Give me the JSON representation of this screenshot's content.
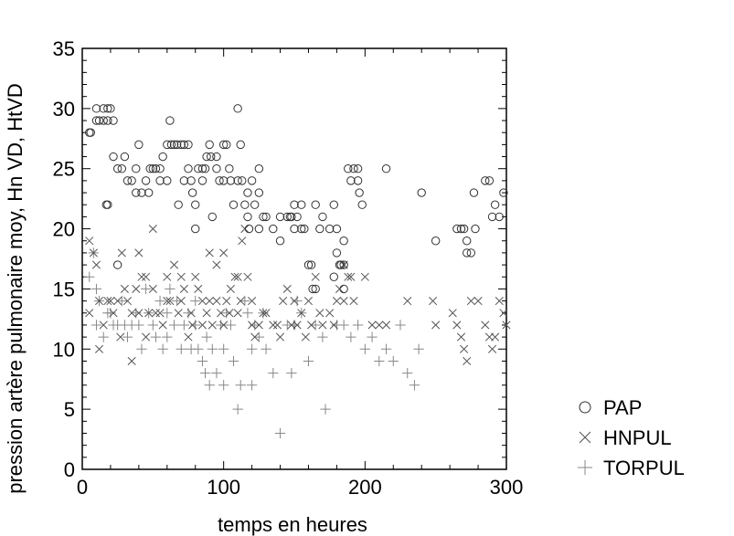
{
  "chart_data": {
    "type": "scatter",
    "title": "",
    "xlabel": "temps en heures",
    "ylabel": "pression artère pulmonaire moy, Hn VD, HtVD",
    "xlim": [
      0,
      300
    ],
    "ylim": [
      0,
      35
    ],
    "x_ticks": [
      0,
      100,
      200,
      300
    ],
    "y_ticks": [
      0,
      5,
      10,
      15,
      20,
      25,
      30,
      35
    ],
    "grid": false,
    "legend_position": "right",
    "series": [
      {
        "name": "PAP",
        "marker": "circle",
        "color": "#333333",
        "points": [
          [
            5,
            28
          ],
          [
            6,
            28
          ],
          [
            10,
            29
          ],
          [
            10,
            30
          ],
          [
            12,
            29
          ],
          [
            15,
            29
          ],
          [
            15,
            30
          ],
          [
            18,
            29
          ],
          [
            18,
            30
          ],
          [
            20,
            30
          ],
          [
            22,
            29
          ],
          [
            17,
            22
          ],
          [
            18,
            22
          ],
          [
            25,
            17
          ],
          [
            22,
            26
          ],
          [
            25,
            25
          ],
          [
            28,
            25
          ],
          [
            30,
            26
          ],
          [
            32,
            24
          ],
          [
            35,
            24
          ],
          [
            38,
            23
          ],
          [
            38,
            25
          ],
          [
            40,
            27
          ],
          [
            42,
            23
          ],
          [
            45,
            24
          ],
          [
            47,
            23
          ],
          [
            48,
            25
          ],
          [
            50,
            25
          ],
          [
            52,
            25
          ],
          [
            55,
            25
          ],
          [
            55,
            24
          ],
          [
            57,
            26
          ],
          [
            60,
            27
          ],
          [
            60,
            24
          ],
          [
            62,
            29
          ],
          [
            63,
            27
          ],
          [
            65,
            27
          ],
          [
            67,
            27
          ],
          [
            68,
            22
          ],
          [
            70,
            27
          ],
          [
            72,
            27
          ],
          [
            72,
            24
          ],
          [
            75,
            27
          ],
          [
            75,
            25
          ],
          [
            77,
            24
          ],
          [
            78,
            23
          ],
          [
            80,
            22
          ],
          [
            80,
            20
          ],
          [
            82,
            25
          ],
          [
            85,
            25
          ],
          [
            85,
            24
          ],
          [
            87,
            25
          ],
          [
            88,
            26
          ],
          [
            90,
            27
          ],
          [
            91,
            26
          ],
          [
            92,
            21
          ],
          [
            95,
            26
          ],
          [
            95,
            25
          ],
          [
            97,
            24
          ],
          [
            100,
            27
          ],
          [
            100,
            24
          ],
          [
            102,
            27
          ],
          [
            104,
            25
          ],
          [
            105,
            24
          ],
          [
            107,
            22
          ],
          [
            110,
            30
          ],
          [
            110,
            24
          ],
          [
            112,
            27
          ],
          [
            113,
            24
          ],
          [
            115,
            22
          ],
          [
            117,
            23
          ],
          [
            117,
            21
          ],
          [
            118,
            20
          ],
          [
            120,
            24
          ],
          [
            122,
            22
          ],
          [
            125,
            25
          ],
          [
            125,
            23
          ],
          [
            125,
            20
          ],
          [
            128,
            21
          ],
          [
            130,
            21
          ],
          [
            135,
            20
          ],
          [
            140,
            19
          ],
          [
            140,
            21
          ],
          [
            145,
            21
          ],
          [
            147,
            21
          ],
          [
            148,
            21
          ],
          [
            150,
            22
          ],
          [
            150,
            20
          ],
          [
            152,
            21
          ],
          [
            155,
            22
          ],
          [
            155,
            20
          ],
          [
            157,
            20
          ],
          [
            160,
            17
          ],
          [
            162,
            17
          ],
          [
            163,
            15
          ],
          [
            165,
            15
          ],
          [
            165,
            22
          ],
          [
            168,
            20
          ],
          [
            170,
            21
          ],
          [
            175,
            20
          ],
          [
            178,
            22
          ],
          [
            178,
            16
          ],
          [
            180,
            20
          ],
          [
            180,
            18
          ],
          [
            182,
            17
          ],
          [
            183,
            17
          ],
          [
            185,
            17
          ],
          [
            185,
            15
          ],
          [
            185,
            19
          ],
          [
            188,
            25
          ],
          [
            190,
            24
          ],
          [
            192,
            25
          ],
          [
            195,
            25
          ],
          [
            195,
            24
          ],
          [
            196,
            23
          ],
          [
            198,
            22
          ],
          [
            215,
            25
          ],
          [
            240,
            23
          ],
          [
            250,
            19
          ],
          [
            265,
            20
          ],
          [
            268,
            20
          ],
          [
            270,
            20
          ],
          [
            272,
            19
          ],
          [
            272,
            18
          ],
          [
            275,
            18
          ],
          [
            277,
            23
          ],
          [
            278,
            20
          ],
          [
            285,
            24
          ],
          [
            288,
            24
          ],
          [
            290,
            21
          ],
          [
            292,
            22
          ],
          [
            295,
            21
          ],
          [
            298,
            23
          ]
        ]
      },
      {
        "name": "HNPUL",
        "marker": "cross",
        "color": "#555555",
        "points": [
          [
            5,
            19
          ],
          [
            8,
            18
          ],
          [
            5,
            13
          ],
          [
            10,
            17
          ],
          [
            12,
            14
          ],
          [
            12,
            10
          ],
          [
            15,
            12
          ],
          [
            18,
            14
          ],
          [
            20,
            14
          ],
          [
            22,
            13
          ],
          [
            25,
            14
          ],
          [
            27,
            11
          ],
          [
            28,
            18
          ],
          [
            30,
            15
          ],
          [
            32,
            14
          ],
          [
            35,
            13
          ],
          [
            35,
            9
          ],
          [
            38,
            15
          ],
          [
            40,
            13
          ],
          [
            40,
            18
          ],
          [
            42,
            16
          ],
          [
            45,
            16
          ],
          [
            45,
            11
          ],
          [
            47,
            13
          ],
          [
            50,
            20
          ],
          [
            50,
            15
          ],
          [
            52,
            13
          ],
          [
            55,
            13
          ],
          [
            57,
            12
          ],
          [
            60,
            14
          ],
          [
            60,
            16
          ],
          [
            62,
            14
          ],
          [
            65,
            17
          ],
          [
            68,
            13
          ],
          [
            70,
            16
          ],
          [
            70,
            14
          ],
          [
            72,
            15
          ],
          [
            75,
            11
          ],
          [
            77,
            13
          ],
          [
            78,
            12
          ],
          [
            80,
            16
          ],
          [
            82,
            15
          ],
          [
            85,
            14
          ],
          [
            85,
            12
          ],
          [
            88,
            13
          ],
          [
            90,
            18
          ],
          [
            90,
            14
          ],
          [
            92,
            12
          ],
          [
            95,
            17
          ],
          [
            95,
            14
          ],
          [
            98,
            13
          ],
          [
            100,
            12
          ],
          [
            100,
            18
          ],
          [
            102,
            14
          ],
          [
            104,
            13
          ],
          [
            105,
            15
          ],
          [
            108,
            16
          ],
          [
            110,
            16
          ],
          [
            110,
            13
          ],
          [
            112,
            14
          ],
          [
            113,
            19
          ],
          [
            115,
            20
          ],
          [
            117,
            16
          ],
          [
            120,
            14
          ],
          [
            120,
            12
          ],
          [
            122,
            11
          ],
          [
            125,
            12
          ],
          [
            128,
            13
          ],
          [
            130,
            13
          ],
          [
            135,
            12
          ],
          [
            138,
            12
          ],
          [
            140,
            11
          ],
          [
            142,
            14
          ],
          [
            145,
            15
          ],
          [
            148,
            12
          ],
          [
            150,
            14
          ],
          [
            152,
            12
          ],
          [
            155,
            13
          ],
          [
            158,
            11
          ],
          [
            160,
            14
          ],
          [
            162,
            12
          ],
          [
            165,
            16
          ],
          [
            168,
            13
          ],
          [
            170,
            12
          ],
          [
            175,
            13
          ],
          [
            178,
            12
          ],
          [
            180,
            14
          ],
          [
            182,
            15
          ],
          [
            185,
            17
          ],
          [
            185,
            14
          ],
          [
            188,
            16
          ],
          [
            190,
            16
          ],
          [
            192,
            14
          ],
          [
            200,
            16
          ],
          [
            205,
            12
          ],
          [
            210,
            12
          ],
          [
            215,
            12
          ],
          [
            230,
            14
          ],
          [
            248,
            14
          ],
          [
            250,
            12
          ],
          [
            262,
            13
          ],
          [
            265,
            12
          ],
          [
            268,
            11
          ],
          [
            270,
            10
          ],
          [
            272,
            9
          ],
          [
            275,
            14
          ],
          [
            280,
            14
          ],
          [
            285,
            12
          ],
          [
            288,
            11
          ],
          [
            290,
            10
          ],
          [
            292,
            11
          ],
          [
            295,
            14
          ],
          [
            298,
            13
          ],
          [
            300,
            12
          ],
          [
            302,
            11
          ],
          [
            305,
            10
          ],
          [
            308,
            12
          ]
        ]
      },
      {
        "name": "TORPUL",
        "marker": "plus",
        "color": "#888888",
        "points": [
          [
            5,
            16
          ],
          [
            8,
            18
          ],
          [
            10,
            15
          ],
          [
            10,
            12
          ],
          [
            12,
            14
          ],
          [
            15,
            11
          ],
          [
            18,
            13
          ],
          [
            20,
            13
          ],
          [
            22,
            12
          ],
          [
            25,
            12
          ],
          [
            28,
            14
          ],
          [
            30,
            12
          ],
          [
            32,
            11
          ],
          [
            35,
            12
          ],
          [
            38,
            13
          ],
          [
            40,
            12
          ],
          [
            42,
            10
          ],
          [
            45,
            15
          ],
          [
            47,
            13
          ],
          [
            50,
            12
          ],
          [
            52,
            11
          ],
          [
            55,
            14
          ],
          [
            57,
            10
          ],
          [
            60,
            13
          ],
          [
            60,
            11
          ],
          [
            62,
            15
          ],
          [
            65,
            12
          ],
          [
            67,
            14
          ],
          [
            70,
            10
          ],
          [
            72,
            12
          ],
          [
            75,
            13
          ],
          [
            77,
            10
          ],
          [
            80,
            14
          ],
          [
            80,
            12
          ],
          [
            82,
            10
          ],
          [
            85,
            9
          ],
          [
            87,
            8
          ],
          [
            88,
            11
          ],
          [
            90,
            7
          ],
          [
            92,
            10
          ],
          [
            95,
            8
          ],
          [
            98,
            12
          ],
          [
            100,
            10
          ],
          [
            100,
            7
          ],
          [
            102,
            13
          ],
          [
            105,
            12
          ],
          [
            107,
            9
          ],
          [
            110,
            5
          ],
          [
            112,
            7
          ],
          [
            115,
            14
          ],
          [
            117,
            13
          ],
          [
            120,
            7
          ],
          [
            120,
            10
          ],
          [
            122,
            12
          ],
          [
            125,
            11
          ],
          [
            128,
            13
          ],
          [
            130,
            10
          ],
          [
            135,
            8
          ],
          [
            140,
            3
          ],
          [
            145,
            12
          ],
          [
            148,
            8
          ],
          [
            150,
            12
          ],
          [
            152,
            14
          ],
          [
            155,
            13
          ],
          [
            160,
            9
          ],
          [
            165,
            12
          ],
          [
            170,
            11
          ],
          [
            172,
            5
          ],
          [
            180,
            12
          ],
          [
            185,
            12
          ],
          [
            190,
            11
          ],
          [
            195,
            12
          ],
          [
            200,
            10
          ],
          [
            205,
            11
          ],
          [
            210,
            9
          ],
          [
            215,
            10
          ],
          [
            220,
            9
          ],
          [
            225,
            12
          ],
          [
            230,
            8
          ],
          [
            235,
            7
          ],
          [
            238,
            10
          ]
        ]
      }
    ]
  }
}
